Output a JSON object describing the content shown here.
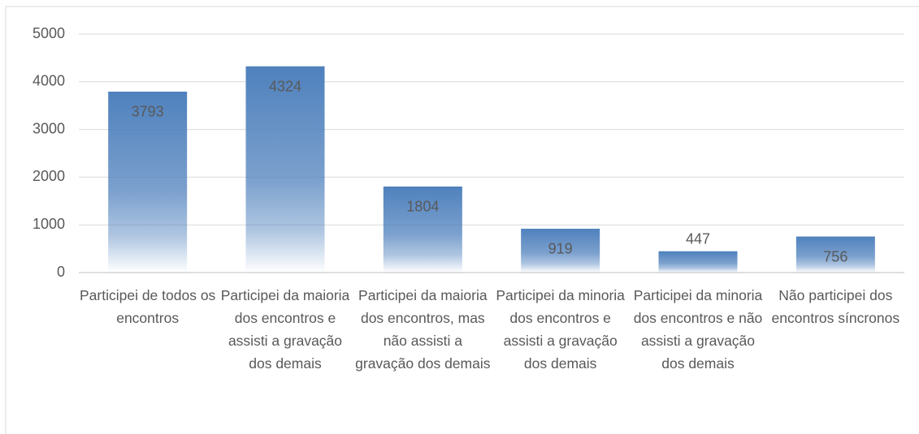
{
  "chart_data": {
    "type": "bar",
    "categories": [
      "Participei de todos os encontros",
      "Participei da maioria dos encontros e assisti a gravação dos demais",
      "Participei da maioria dos encontros, mas não assisti a gravação dos demais",
      "Participei da minoria dos encontros e assisti a gravação dos demais",
      "Participei da minoria dos encontros e não assisti a gravação dos demais",
      "Não participei dos encontros síncronos"
    ],
    "values": [
      3793,
      4324,
      1804,
      919,
      447,
      756
    ],
    "color": "#4f81bd",
    "ylim": [
      0,
      5000
    ],
    "yticks": [
      0,
      1000,
      2000,
      3000,
      4000,
      5000
    ],
    "grid": true
  }
}
